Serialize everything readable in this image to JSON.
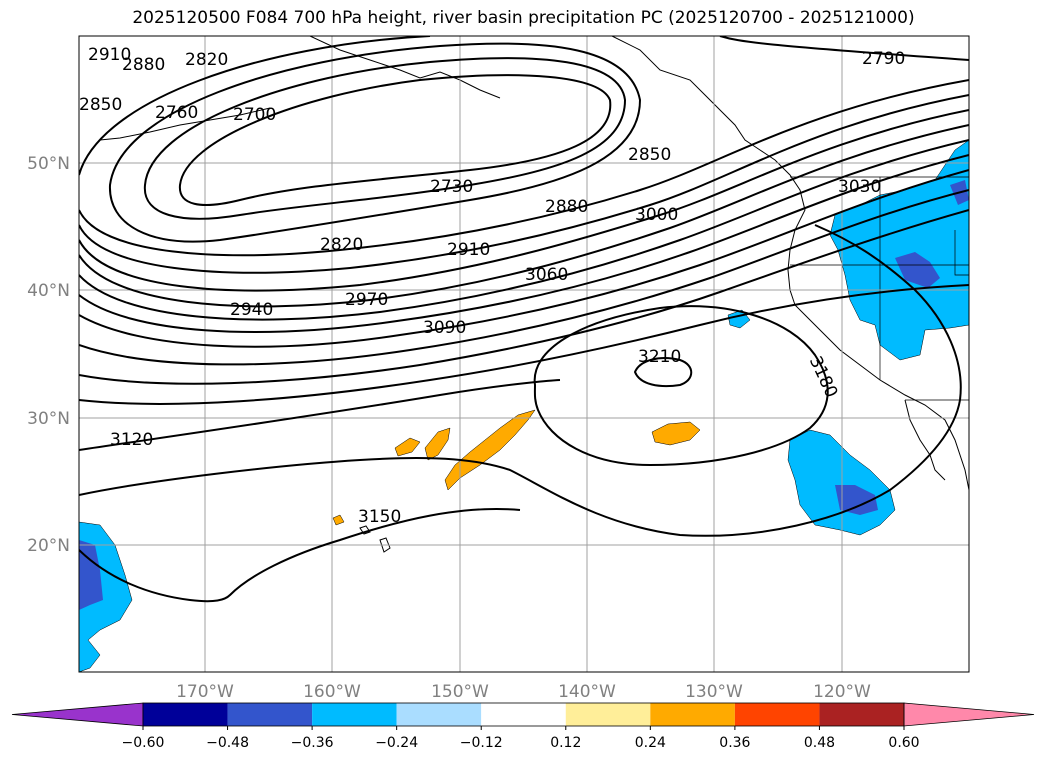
{
  "title": "2025120500 F084 700 hPa height, river basin precipitation PC (2025120700 - 2025121000)",
  "lat_ticks": [
    "50°N",
    "40°N",
    "30°N",
    "20°N"
  ],
  "lon_ticks": [
    "170°W",
    "160°W",
    "150°W",
    "140°W",
    "130°W",
    "120°W"
  ],
  "colorbar": {
    "tick_labels": [
      "−0.60",
      "−0.48",
      "−0.36",
      "−0.24",
      "−0.12",
      "0.12",
      "0.24",
      "0.36",
      "0.48",
      "0.60"
    ],
    "colors": [
      "#9933cc",
      "#000099",
      "#3355cc",
      "#00bbff",
      "#aaddff",
      "#ffffff",
      "#ffee99",
      "#ffaa00",
      "#ff4400",
      "#aa2222",
      "#ff88aa"
    ]
  },
  "contour_labels": [
    "2910",
    "2880",
    "2820",
    "2850",
    "2760",
    "2700",
    "2790",
    "2730",
    "2850",
    "2880",
    "3030",
    "3000",
    "2820",
    "2910",
    "3060",
    "2940",
    "2970",
    "3090",
    "3210",
    "3180",
    "3120",
    "3150"
  ],
  "chart_data": {
    "type": "map",
    "projection": "lat-lon",
    "lon_range": [
      "180°W",
      "110°W"
    ],
    "lat_range": [
      "10°N",
      "60°N"
    ],
    "variable_contours": "700 hPa height",
    "variable_shading": "river basin precipitation PC",
    "contour_levels": [
      2700,
      2730,
      2760,
      2790,
      2820,
      2850,
      2880,
      2910,
      2940,
      2970,
      3000,
      3030,
      3060,
      3090,
      3120,
      3150,
      3180,
      3210
    ],
    "grid": true
  }
}
